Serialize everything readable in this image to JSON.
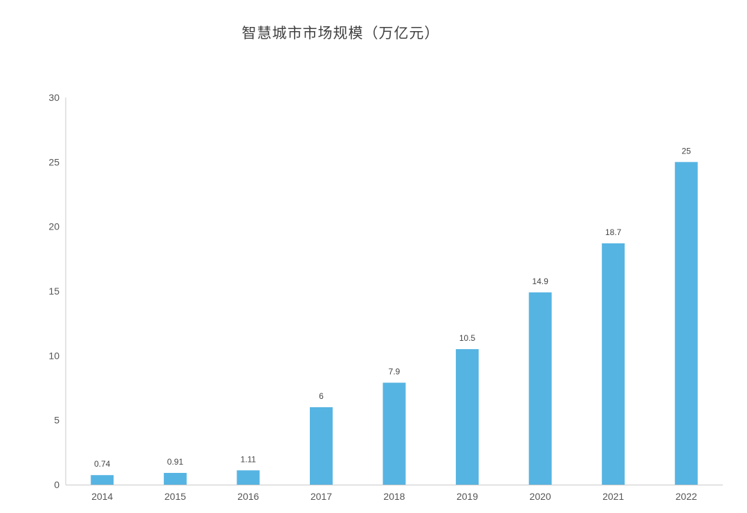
{
  "colors": {
    "bar": "#56B4E2",
    "axis": "#c8c8c8",
    "text": "#555555"
  },
  "chart_data": {
    "type": "bar",
    "title": "智慧城市市场规模（万亿元）",
    "xlabel": "",
    "ylabel": "",
    "categories": [
      "2014",
      "2015",
      "2016",
      "2017",
      "2018",
      "2019",
      "2020",
      "2021",
      "2022"
    ],
    "values": [
      0.74,
      0.91,
      1.11,
      6,
      7.9,
      10.5,
      14.9,
      18.7,
      25
    ],
    "data_labels": [
      "0.74",
      "0.91",
      "1.11",
      "6",
      "7.9",
      "10.5",
      "14.9",
      "18.7",
      "25"
    ],
    "ylim": [
      0,
      30
    ],
    "yticks": [
      "0",
      "5",
      "10",
      "15",
      "20",
      "25",
      "30"
    ],
    "grid": false,
    "legend": "none"
  }
}
